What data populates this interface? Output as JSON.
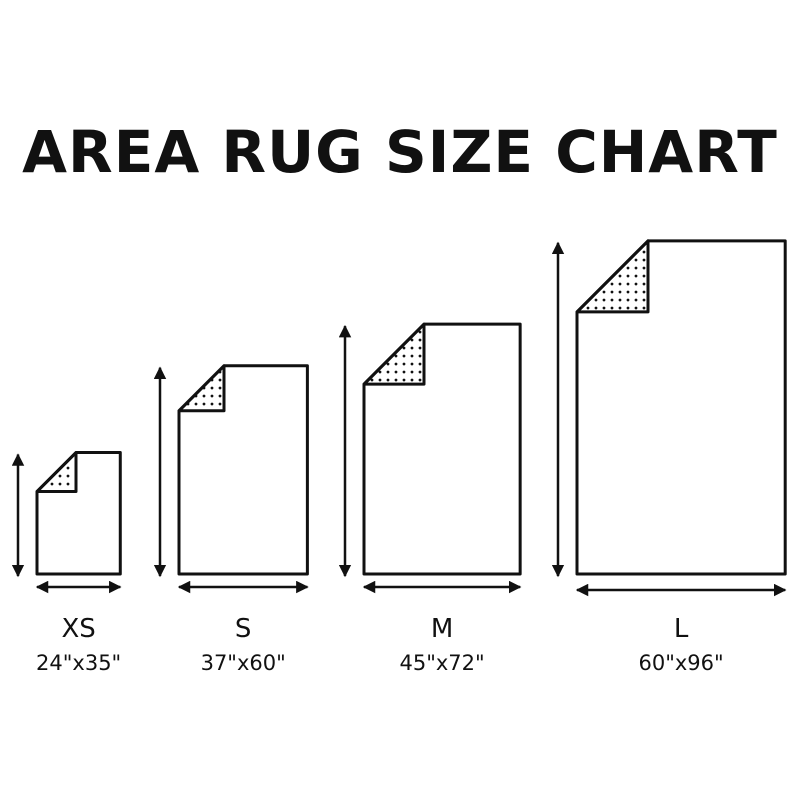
{
  "title": "AREA RUG SIZE CHART",
  "unit": "inches",
  "colors": {
    "ink": "#111111",
    "background": "#ffffff"
  },
  "rugs": [
    {
      "size": "XS",
      "dims": "24\"x35\"",
      "width": 24,
      "length": 35
    },
    {
      "size": "S",
      "dims": "37\"x60\"",
      "width": 37,
      "length": 60
    },
    {
      "size": "M",
      "dims": "45\"x72\"",
      "width": 45,
      "length": 72
    },
    {
      "size": "L",
      "dims": "60\"x96\"",
      "width": 60,
      "length": 96
    }
  ]
}
